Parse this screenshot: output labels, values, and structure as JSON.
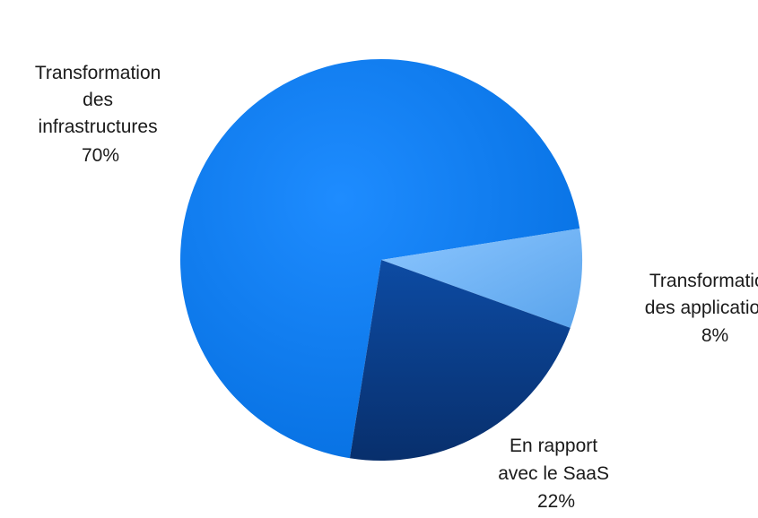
{
  "chart_data": {
    "type": "pie",
    "title": "",
    "slices": [
      {
        "label_lines": [
          "Transformation",
          "des",
          "infrastructures"
        ],
        "percent_label": "70%",
        "value": 70,
        "color": "#0a7ef0"
      },
      {
        "label_lines": [
          "Transformation",
          "des applications"
        ],
        "percent_label": "8%",
        "value": 8,
        "color": "#72b6f8"
      },
      {
        "label_lines": [
          "En rapport",
          "avec  le SaaS"
        ],
        "percent_label": "22%",
        "value": 22,
        "color": "#0b3f8c"
      }
    ]
  }
}
